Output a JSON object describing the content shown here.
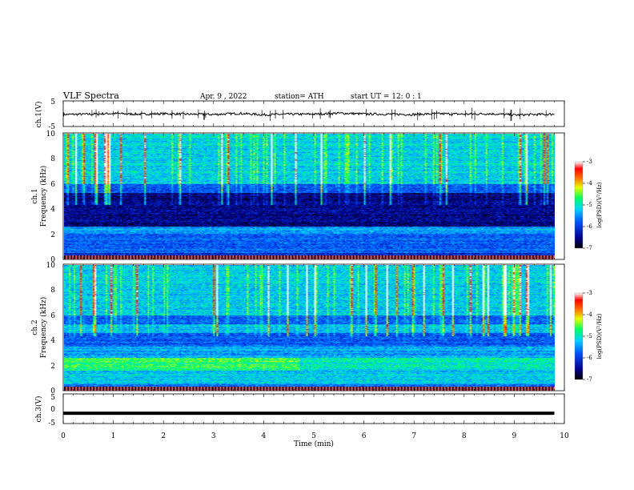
{
  "header": {
    "title": "VLF  Spectra",
    "date": "Apr. 9  , 2022",
    "station": "station= ATH",
    "start": "start  UT  =    12: 0   : 1"
  },
  "colors": {
    "spectrogram_low": "#000a46",
    "spectrogram_mid": "#00c8ff",
    "spectrogram_high": "#ff0000",
    "trace": "#000000"
  },
  "chart_data": [
    {
      "type": "line",
      "panel": "ch1-waveform",
      "ylabel": "ch.1(V)",
      "ylim": [
        -5,
        5
      ],
      "yticks": [
        "5",
        "-5"
      ],
      "xlim": [
        0,
        10
      ],
      "x": [
        0,
        0.5,
        1,
        1.5,
        2,
        2.5,
        3,
        3.5,
        4,
        4.5,
        5,
        5.5,
        6,
        6.5,
        7,
        7.5,
        8,
        8.5,
        9,
        9.5,
        9.8
      ],
      "y": [
        -0.3,
        -0.2,
        0.1,
        -0.2,
        0.0,
        -0.2,
        -0.3,
        0.1,
        -0.4,
        -0.2,
        -0.2,
        0.2,
        -0.1,
        -0.2,
        -0.3,
        0.0,
        -0.2,
        0.0,
        -0.5,
        -0.3,
        -0.2
      ]
    },
    {
      "type": "heatmap",
      "panel": "ch1-spectrogram",
      "ylabel_top": "ch.1",
      "ylabel": "Frequency  (kHz)",
      "ylim": [
        0,
        10
      ],
      "yticks": [
        "0",
        "2",
        "4",
        "6",
        "8",
        "10"
      ],
      "xlim": [
        0,
        10
      ],
      "data_xmax": 9.8,
      "colorbar": {
        "label": "log(PSD)(V²/Hz)",
        "range": [
          -7,
          -3
        ],
        "ticks": [
          "-3",
          "-4",
          "-5",
          "-6",
          "-7"
        ]
      }
    },
    {
      "type": "heatmap",
      "panel": "ch2-spectrogram",
      "ylabel_top": "ch.2",
      "ylabel": "Frequency  (kHz)",
      "ylim": [
        0,
        10
      ],
      "yticks": [
        "0",
        "2",
        "4",
        "6",
        "8",
        "10"
      ],
      "xlim": [
        0,
        10
      ],
      "data_xmax": 9.8,
      "colorbar": {
        "label": "log(PSD)(V²/Hz)",
        "range": [
          -7,
          -3
        ],
        "ticks": [
          "-3",
          "-4",
          "-5",
          "-6",
          "-7"
        ]
      }
    },
    {
      "type": "line",
      "panel": "ch3-waveform",
      "ylabel": "ch.3(V)",
      "ylim": [
        -5,
        5
      ],
      "yticks": [
        "5",
        "0",
        "-5"
      ],
      "xlim": [
        0,
        10
      ],
      "xticks": [
        "0",
        "1",
        "2",
        "3",
        "4",
        "5",
        "6",
        "7",
        "8",
        "9",
        "10"
      ],
      "xlabel": "Time  (min)",
      "x": [
        0,
        9.8
      ],
      "y": [
        -1.5,
        -1.5
      ]
    }
  ]
}
